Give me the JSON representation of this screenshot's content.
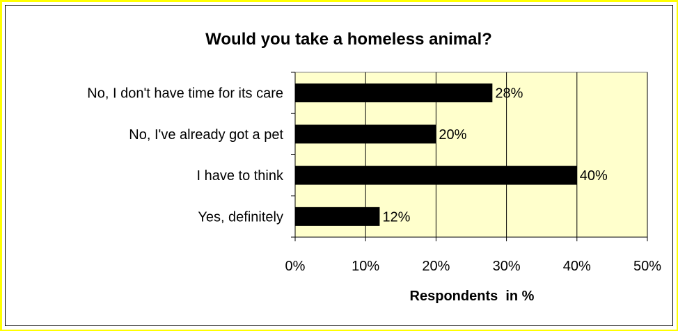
{
  "chart_data": {
    "type": "bar",
    "orientation": "horizontal",
    "title": "Would you take a homeless animal?",
    "xlabel": "Respondents  in %",
    "ylabel": "",
    "categories": [
      "No, I don't have time for its care",
      "No, I've already got a pet",
      "I have to think",
      "Yes, definitely"
    ],
    "values": [
      28,
      20,
      40,
      12
    ],
    "data_labels": [
      "28%",
      "20%",
      "40%",
      "12%"
    ],
    "xlim": [
      0,
      50
    ],
    "x_ticks": [
      "0%",
      "10%",
      "20%",
      "30%",
      "40%",
      "50%"
    ],
    "grid": "vertical",
    "legend": "none",
    "colors": {
      "bar": "#000000",
      "plot_background": "#ffffcc",
      "border_outer": "#ffff00",
      "gridline": "#000000"
    }
  }
}
